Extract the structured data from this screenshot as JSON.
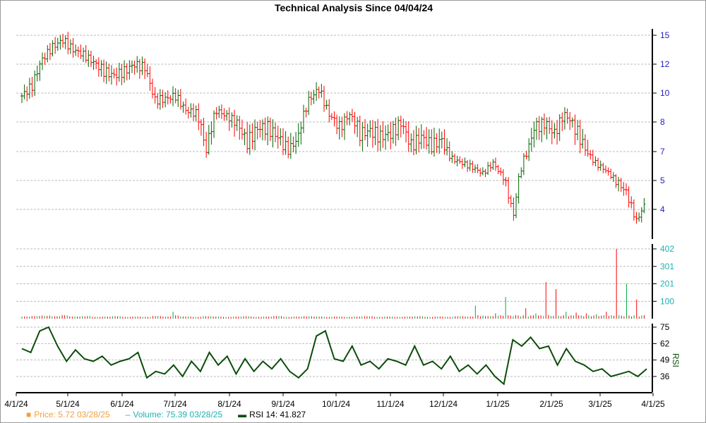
{
  "chart_data": {
    "type": "ohlc+bar+line",
    "title": "Technical Analysis Since 04/04/24",
    "x_ticks": [
      "4/1/24",
      "5/1/24",
      "6/1/24",
      "7/1/24",
      "8/1/24",
      "9/1/24",
      "10/1/24",
      "11/1/24",
      "12/1/24",
      "1/1/25",
      "2/1/25",
      "3/1/25",
      "4/1/25"
    ],
    "price_ticks": [
      15,
      12,
      10,
      8,
      7,
      5,
      4
    ],
    "volume_ticks": [
      402,
      301,
      201,
      100
    ],
    "rsi_ticks": [
      75,
      62,
      49,
      36
    ],
    "rsi_axis_label": "RSI",
    "price_close": [
      9.8,
      10.5,
      12.5,
      13.8,
      14.5,
      13.5,
      13,
      12.2,
      11.5,
      11.2,
      11.5,
      12,
      11.8,
      9.5,
      9.6,
      9.8,
      8.8,
      8.6,
      7,
      8.8,
      8.4,
      8,
      7.3,
      7.8,
      7.8,
      7.5,
      7,
      7.5,
      9.5,
      10.3,
      8.5,
      7.8,
      8.5,
      7.6,
      7.7,
      7.5,
      7.6,
      8,
      7.2,
      7.5,
      7.2,
      7.4,
      6.5,
      6.2,
      5.9,
      5.5,
      6.2,
      5.2,
      3.8,
      6.5,
      7.8,
      8,
      7.6,
      8.5,
      7.8,
      7.1,
      6.2,
      5.7,
      5,
      4.6,
      3.6,
      4.3
    ],
    "volume": [
      12,
      15,
      18,
      14,
      20,
      12,
      15,
      10,
      12,
      14,
      10,
      12,
      10,
      15,
      12,
      40,
      12,
      10,
      14,
      12,
      10,
      12,
      14,
      10,
      12,
      15,
      10,
      12,
      14,
      12,
      10,
      12,
      10,
      12,
      14,
      10,
      12,
      10,
      12,
      14,
      10,
      12,
      10,
      14,
      12,
      75,
      15,
      30,
      125,
      20,
      60,
      30,
      210,
      170,
      40,
      35,
      30,
      25,
      40,
      402,
      201,
      110
    ],
    "rsi": [
      58,
      55,
      72,
      75,
      60,
      48,
      57,
      50,
      48,
      52,
      45,
      48,
      50,
      55,
      35,
      40,
      38,
      45,
      36,
      48,
      40,
      55,
      45,
      52,
      38,
      50,
      40,
      48,
      42,
      50,
      40,
      35,
      42,
      68,
      72,
      50,
      48,
      60,
      45,
      48,
      42,
      50,
      48,
      45,
      60,
      45,
      48,
      42,
      52,
      40,
      45,
      38,
      45,
      36,
      30,
      65,
      60,
      67,
      58,
      60,
      45,
      58,
      48,
      45,
      40,
      42,
      36,
      38,
      40,
      36,
      42
    ],
    "up_color": "#006400",
    "down_color": "#ff0000",
    "volume_up_color": "#00aa44",
    "rsi_color": "#0b4d0b"
  },
  "legend": {
    "price": "Price: 5.72  03/28/25",
    "volume": "Volume: 75.39  03/28/25",
    "rsi": "RSI 14: 41.827"
  }
}
